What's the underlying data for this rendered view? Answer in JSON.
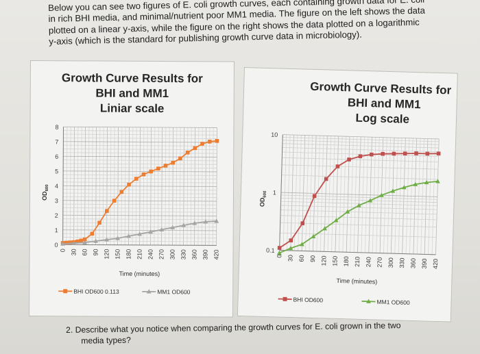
{
  "intro": {
    "line1": "Below you can see two figures of E. coli growth curves, each containing growth data for E. coli",
    "line2": "in rich BHI media, and minimal/nutrient poor MM1 media. The figure on the left shows the data",
    "line3": "plotted on a linear y-axis, while the figure on the right shows the data plotted on a logarithmic",
    "line4": "y-axis (which is the standard for publishing growth curve data in microbiology)."
  },
  "question": {
    "line1": "2.  Describe what you notice when comparing the growth curves for E. coli grown in the two",
    "line2": "media types?"
  },
  "chart_data": [
    {
      "type": "line",
      "title_lines": [
        "Growth Curve Results for",
        "BHI and MM1",
        "Liniar scale"
      ],
      "xlabel": "Time (minutes)",
      "ylabel": "OD600",
      "x": [
        0,
        30,
        60,
        90,
        120,
        150,
        180,
        210,
        240,
        270,
        300,
        330,
        360,
        390,
        420
      ],
      "x_minor_step": 10,
      "ylim": [
        0,
        8
      ],
      "yticks": [
        0,
        1,
        2,
        3,
        4,
        5,
        6,
        7,
        8
      ],
      "y_minor_step": 0.25,
      "log_y": false,
      "grid": true,
      "legend_position": "bottom",
      "series": [
        {
          "name": "BHI OD600 0.113",
          "color": "#ed7d31",
          "marker": "square",
          "x": [
            0,
            10,
            20,
            30,
            40,
            50,
            60,
            80,
            100,
            120,
            140,
            160,
            180,
            200,
            220,
            240,
            260,
            280,
            300,
            320,
            340,
            360,
            380,
            400,
            420
          ],
          "values": [
            0.11,
            0.13,
            0.15,
            0.17,
            0.22,
            0.28,
            0.36,
            0.75,
            1.5,
            2.3,
            3.0,
            3.6,
            4.1,
            4.5,
            4.8,
            5.0,
            5.2,
            5.4,
            5.6,
            5.9,
            6.3,
            6.6,
            6.9,
            7.05,
            7.1
          ]
        },
        {
          "name": "MM1 OD600",
          "color": "#a5a5a5",
          "marker": "triangle",
          "x": [
            0,
            30,
            60,
            90,
            120,
            150,
            180,
            210,
            240,
            270,
            300,
            330,
            360,
            390,
            420
          ],
          "values": [
            0.05,
            0.1,
            0.15,
            0.25,
            0.35,
            0.45,
            0.6,
            0.75,
            0.9,
            1.05,
            1.2,
            1.35,
            1.5,
            1.6,
            1.65
          ]
        }
      ]
    },
    {
      "type": "line",
      "title_lines": [
        "Growth Curve Results for",
        "BHI and MM1",
        "Log scale"
      ],
      "xlabel": "Time (minutes)",
      "ylabel": "OD600",
      "x": [
        0,
        30,
        60,
        90,
        120,
        150,
        180,
        210,
        240,
        270,
        300,
        330,
        360,
        390,
        420
      ],
      "x_minor_step": 10,
      "ylim": [
        0.1,
        10
      ],
      "yticks": [
        0.1,
        1,
        10
      ],
      "log_y": true,
      "grid": true,
      "legend_position": "bottom",
      "series": [
        {
          "name": "BHI OD600",
          "color": "#c0504d",
          "marker": "square",
          "x": [
            0,
            30,
            60,
            90,
            120,
            150,
            180,
            210,
            240,
            270,
            300,
            330,
            360,
            390,
            420
          ],
          "values": [
            0.11,
            0.15,
            0.3,
            0.9,
            1.8,
            3.0,
            4.0,
            4.6,
            5.0,
            5.2,
            5.3,
            5.4,
            5.5,
            5.5,
            5.6
          ]
        },
        {
          "name": "MM1 OD600",
          "color": "#70ad47",
          "marker": "triangle",
          "x": [
            0,
            30,
            60,
            90,
            120,
            150,
            180,
            210,
            240,
            270,
            300,
            330,
            360,
            390,
            420
          ],
          "values": [
            0.09,
            0.11,
            0.13,
            0.18,
            0.25,
            0.35,
            0.5,
            0.65,
            0.8,
            1.0,
            1.2,
            1.4,
            1.6,
            1.75,
            1.85
          ]
        }
      ]
    }
  ]
}
